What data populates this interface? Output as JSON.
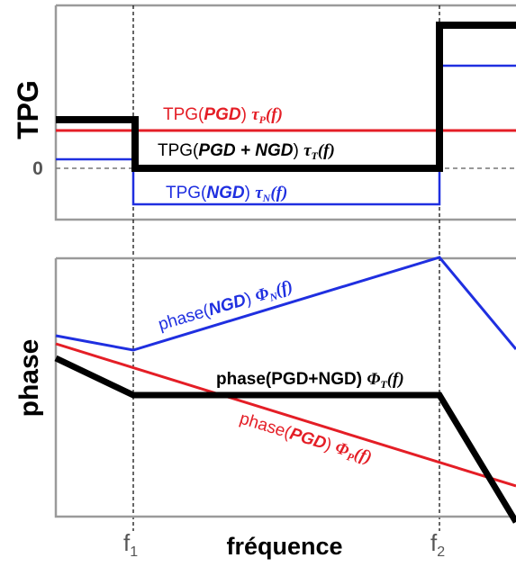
{
  "colors": {
    "pgd": "#e41e26",
    "ngd": "#1f2fe0",
    "total": "#000000",
    "frame": "#9a9a9a",
    "guide": "#000000"
  },
  "top_panel": {
    "ylabel": "TPG",
    "zero_label": "0",
    "label_pgd": {
      "pre": "TPG(",
      "bold": "PGD",
      "post": ") ",
      "sym": "τ",
      "sub": "P",
      "tail": "(f)"
    },
    "label_total": {
      "pre": "TPG(",
      "bold": "PGD + NGD",
      "post": ") ",
      "sym": "τ",
      "sub": "T",
      "tail": "(f)"
    },
    "label_ngd": {
      "pre": "TPG(",
      "bold": "NGD",
      "post": ") ",
      "sym": "τ",
      "sub": "N",
      "tail": "(f)"
    }
  },
  "bottom_panel": {
    "ylabel": "phase",
    "label_ngd": {
      "pre": "phase(",
      "bold": "NGD",
      "post": ") ",
      "sym": "Φ",
      "sub": "N",
      "tail": "(f)"
    },
    "label_total": {
      "pre": "phase(PGD+NGD) ",
      "sym": "Φ",
      "sub": "T",
      "tail": "(f)"
    },
    "label_pgd": {
      "pre": "phase(",
      "bold": "PGD",
      "post": ") ",
      "sym": "Φ",
      "sub": "P",
      "tail": "(f)"
    }
  },
  "xaxis": {
    "label": "fréquence",
    "tick_f1": {
      "main": "f",
      "sub": "1"
    },
    "tick_f2": {
      "main": "f",
      "sub": "2"
    }
  }
}
